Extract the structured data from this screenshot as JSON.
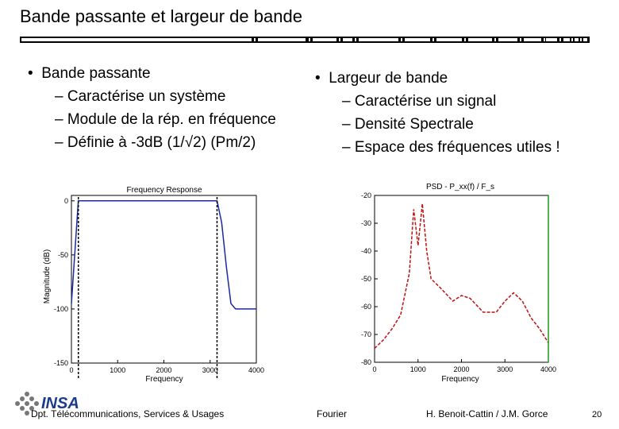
{
  "slide": {
    "title": "Bande passante et largeur de bande",
    "left": {
      "heading": "Bande passante",
      "items": [
        "Caractérise un système",
        "Module de la rép. en fréquence",
        "Définie à -3dB (1/√2) (Pm/2)"
      ]
    },
    "right": {
      "heading": "Largeur de bande",
      "items": [
        "Caractérise un signal",
        "Densité Spectrale",
        "Espace des fréquences utiles !"
      ]
    },
    "footer": {
      "dept": "Dpt. Télécommunications, Services & Usages",
      "course": "Fourier",
      "authors": "H. Benoit-Cattin / J.M. Gorce",
      "page": "20"
    },
    "logo_text": "INSA"
  },
  "chart_data": [
    {
      "type": "line",
      "title": "Frequency Response",
      "xlabel": "Frequency",
      "ylabel": "Magnitude (dB)",
      "xticks": [
        "0",
        "1000",
        "2000",
        "3000",
        "4000"
      ],
      "yticks": [
        "0",
        "-50",
        "-100",
        "-150"
      ],
      "xlim": [
        0,
        4000
      ],
      "ylim": [
        -150,
        5
      ],
      "grid": false,
      "series": [
        {
          "color": "#1a9a1a",
          "x": [
            150,
            3150
          ],
          "y": [
            0,
            0
          ]
        },
        {
          "color": "#1a2aa0",
          "x": [
            0,
            150,
            3150,
            3250,
            3350,
            3450,
            3550,
            4000
          ],
          "y": [
            -95,
            0,
            0,
            -20,
            -60,
            -95,
            -100,
            -100
          ]
        }
      ]
    },
    {
      "type": "line",
      "title": "PSD - P_xx(f) / F_s",
      "xlabel": "Frequency",
      "yticks": [
        "-20",
        "-30",
        "-40",
        "-50",
        "-60",
        "-70",
        "-80"
      ],
      "xticks": [
        "0",
        "1000",
        "2000",
        "3000",
        "4000"
      ],
      "xlim": [
        0,
        4000
      ],
      "ylim": [
        -80,
        -20
      ],
      "grid": false,
      "series": [
        {
          "color": "#c01010",
          "x": [
            0,
            200,
            400,
            600,
            800,
            900,
            1000,
            1100,
            1200,
            1300,
            1500,
            1800,
            2000,
            2200,
            2500,
            2800,
            3000,
            3200,
            3400,
            3600,
            3800,
            4000
          ],
          "y": [
            -75,
            -72,
            -68,
            -63,
            -48,
            -25,
            -38,
            -23,
            -40,
            -50,
            -53,
            -58,
            -56,
            -57,
            -62,
            -62,
            -58,
            -55,
            -58,
            -64,
            -68,
            -73
          ]
        },
        {
          "color": "#1a9a1a",
          "x": [
            4000,
            4000
          ],
          "y": [
            -20,
            -80
          ]
        }
      ]
    }
  ]
}
